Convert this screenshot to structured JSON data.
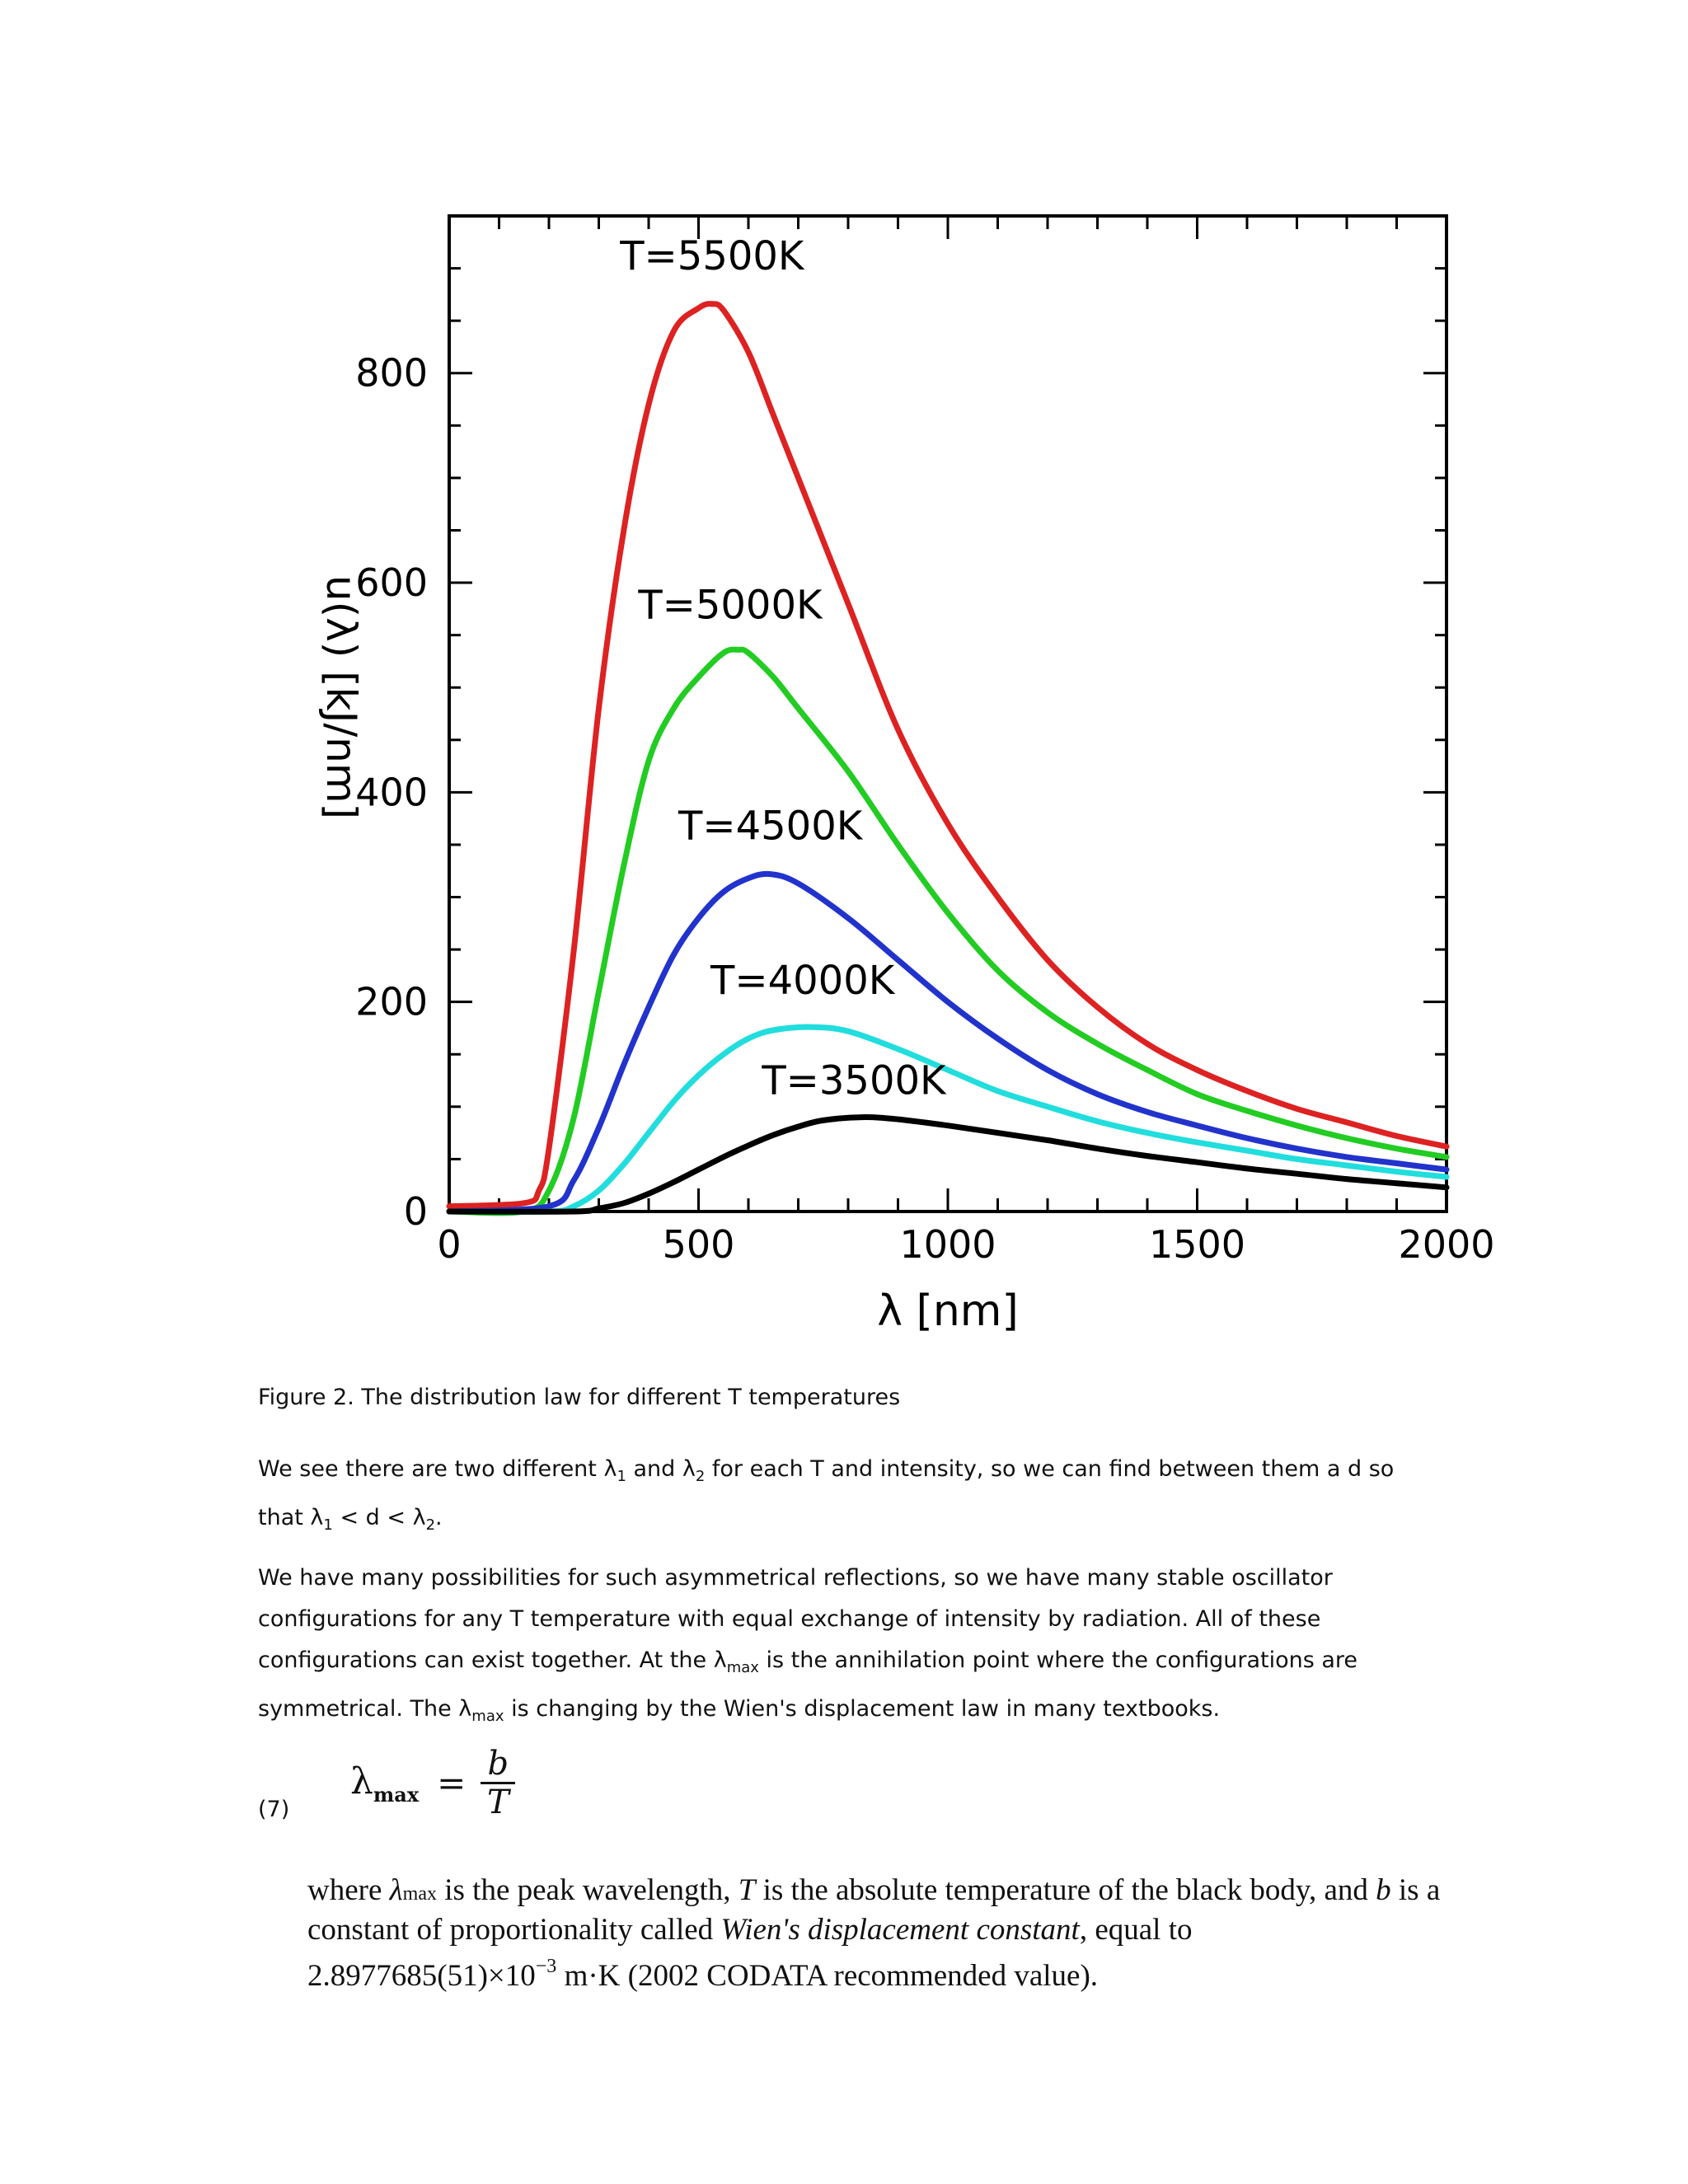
{
  "chart_data": {
    "type": "line",
    "xlabel": "λ [nm]",
    "ylabel": "u(λ) [kJ/nm]",
    "xlim": [
      0,
      2000
    ],
    "ylim": [
      0,
      950
    ],
    "x_ticks": [
      "0",
      "500",
      "1000",
      "1500",
      "2000"
    ],
    "y_ticks": [
      "0",
      "200",
      "400",
      "600",
      "800"
    ],
    "x_tick_values": [
      0,
      500,
      1000,
      1500,
      2000
    ],
    "y_tick_values": [
      0,
      200,
      400,
      600,
      800
    ],
    "grid": false,
    "series": [
      {
        "name": "T=5500K",
        "color": "#dd2222",
        "x": [
          0,
          150,
          180,
          200,
          250,
          300,
          350,
          400,
          450,
          500,
          527,
          550,
          600,
          650,
          700,
          800,
          900,
          1000,
          1100,
          1200,
          1300,
          1400,
          1500,
          1600,
          1700,
          1800,
          1900,
          2000
        ],
        "y": [
          5,
          8,
          20,
          60,
          250,
          480,
          650,
          770,
          840,
          862,
          866,
          860,
          820,
          760,
          700,
          580,
          460,
          370,
          300,
          240,
          195,
          160,
          135,
          115,
          98,
          85,
          72,
          62
        ]
      },
      {
        "name": "T=5000K",
        "color": "#22cc22",
        "x": [
          0,
          150,
          200,
          250,
          300,
          350,
          400,
          450,
          500,
          550,
          580,
          600,
          650,
          700,
          800,
          900,
          1000,
          1100,
          1200,
          1300,
          1400,
          1500,
          1600,
          1700,
          1800,
          1900,
          2000
        ],
        "y": [
          0,
          0,
          20,
          90,
          210,
          330,
          430,
          480,
          510,
          533,
          536,
          533,
          510,
          480,
          420,
          350,
          285,
          230,
          190,
          160,
          135,
          112,
          96,
          82,
          70,
          60,
          52
        ]
      },
      {
        "name": "T=4500K",
        "color": "#2233cc",
        "x": [
          0,
          200,
          250,
          300,
          350,
          400,
          450,
          500,
          550,
          600,
          644,
          700,
          800,
          900,
          1000,
          1100,
          1200,
          1300,
          1400,
          1500,
          1600,
          1700,
          1800,
          1900,
          2000
        ],
        "y": [
          0,
          5,
          30,
          80,
          140,
          195,
          245,
          280,
          305,
          318,
          322,
          313,
          280,
          240,
          200,
          165,
          135,
          112,
          95,
          82,
          70,
          60,
          52,
          46,
          40
        ]
      },
      {
        "name": "T=4000K",
        "color": "#22dddd",
        "x": [
          0,
          200,
          250,
          300,
          350,
          400,
          450,
          500,
          550,
          600,
          650,
          725,
          800,
          900,
          1000,
          1100,
          1200,
          1300,
          1400,
          1500,
          1600,
          1700,
          1800,
          1900,
          2000
        ],
        "y": [
          0,
          0,
          5,
          20,
          45,
          75,
          105,
          130,
          150,
          165,
          173,
          176,
          172,
          155,
          135,
          115,
          100,
          86,
          75,
          66,
          58,
          50,
          44,
          38,
          33
        ]
      },
      {
        "name": "T=3500K",
        "color": "#000000",
        "x": [
          0,
          250,
          300,
          350,
          400,
          450,
          500,
          550,
          600,
          650,
          700,
          750,
          828,
          900,
          1000,
          1100,
          1200,
          1300,
          1400,
          1500,
          1600,
          1700,
          1800,
          1900,
          2000
        ],
        "y": [
          0,
          0,
          3,
          8,
          17,
          28,
          40,
          52,
          63,
          73,
          81,
          87,
          90,
          88,
          82,
          75,
          68,
          60,
          53,
          47,
          41,
          36,
          31,
          27,
          23
        ]
      }
    ]
  },
  "text": {
    "figure_caption": "Figure 2. The distribution law for different T temperatures",
    "p1": {
      "a": "We see there are two different λ",
      "s1": "1",
      "b": " and λ",
      "s2": "2",
      "c": " for each T and intensity, so we can find between them a d so that λ",
      "s3": "1",
      "d": " < d < λ",
      "s4": "2",
      "e": "."
    },
    "p2": {
      "a": "We have many possibilities for such asymmetrical reflections, so we have many stable oscillator configurations for any T temperature with equal exchange of intensity by radiation. All of these configurations can exist together. At the λ",
      "s1": "max",
      "b": " is the annihilation point where the configurations are symmetrical. The λ",
      "s2": "max",
      "c": " is changing by the Wien's displacement law in many textbooks."
    },
    "equation_number": "(7)",
    "equation": {
      "lhs": "λ",
      "lhs_sub": "max",
      "eq": "=",
      "num": "b",
      "den": "T"
    },
    "wien": {
      "a": "where ",
      "lam": "λ",
      "lam_sub": "max",
      "b": " is the peak wavelength, ",
      "T": "T",
      "c": " is the absolute temperature of the black body, and ",
      "bvar": "b",
      "d": " is a constant of proportionality called ",
      "name": "Wien's displacement constant",
      "e": ", equal to 2.8977685(51)×10",
      "exp": "−3",
      "f": " m·K (2002 CODATA recommended value)."
    }
  }
}
